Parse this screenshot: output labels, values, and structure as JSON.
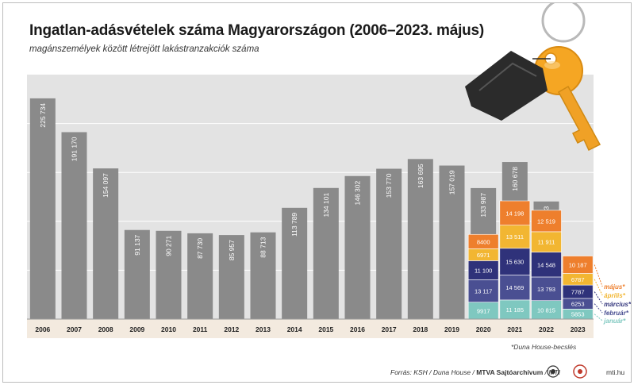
{
  "header": {
    "title": "Ingatlan-adásvételek száma Magyarországon (2006–2023. május)",
    "subtitle": "magánszemélyek között létrejött lakástranzakciók száma"
  },
  "footer": {
    "footnote": "*Duna House-becslés",
    "source": "Forrás: KSH / Duna House / ",
    "source_bold": "MTVA Sajtóarchívum",
    "source_tail": " / MTI",
    "site": "mti.hu"
  },
  "colors": {
    "bar": "#8a8a8a",
    "gridline": "#ffffff",
    "axis_band": "#f3eadf",
    "january": "#7fc8c0",
    "february": "#4a4f92",
    "march": "#2f327a",
    "april": "#f2b632",
    "may": "#ee7f2d",
    "key_gold": "#f5a623",
    "tag_dark": "#2b2b2b"
  },
  "icons": [
    "key-icon",
    "keytag-icon",
    "mti-logo-icon",
    "mtva-logo-icon"
  ],
  "chart_data": {
    "type": "bar",
    "title": "Ingatlan-adásvételek száma Magyarországon (2006–2023. május)",
    "subtitle": "magánszemélyek között létrejött lakástranzakciók száma",
    "xlabel": "",
    "ylabel": "",
    "ylim": [
      0,
      250000
    ],
    "grid": true,
    "categories": [
      "2006",
      "2007",
      "2008",
      "2009",
      "2010",
      "2011",
      "2012",
      "2013",
      "2014",
      "2015",
      "2016",
      "2017",
      "2018",
      "2019",
      "2020",
      "2021",
      "2022",
      "2023"
    ],
    "annual": {
      "values": [
        225734,
        191170,
        154097,
        91137,
        90271,
        87730,
        85957,
        88713,
        113789,
        134101,
        146302,
        153770,
        163695,
        157019,
        133987,
        160678,
        120293,
        null
      ],
      "labels": [
        "225 734",
        "191 170",
        "154 097",
        "91 137",
        "90 271",
        "87 730",
        "85 957",
        "88 713",
        "113 789",
        "134 101",
        "146 302",
        "153 770",
        "163 695",
        "157 019",
        "133 987",
        "160 678",
        "120 293",
        ""
      ]
    },
    "monthly": {
      "years": [
        "2020",
        "2021",
        "2022",
        "2023"
      ],
      "series": [
        {
          "name": "január",
          "key": "january",
          "values": [
            9917,
            11185,
            10815,
            5853
          ],
          "labels": [
            "9917",
            "11 185",
            "10 815",
            "5853"
          ]
        },
        {
          "name": "február",
          "key": "february",
          "values": [
            13117,
            14569,
            13793,
            6253
          ],
          "labels": [
            "13 117",
            "14 569",
            "13 793",
            "6253"
          ]
        },
        {
          "name": "március",
          "key": "march",
          "values": [
            11100,
            15630,
            14548,
            7787
          ],
          "labels": [
            "11 100",
            "15 630",
            "14 548",
            "7787"
          ]
        },
        {
          "name": "április",
          "key": "april",
          "values": [
            6971,
            13511,
            11911,
            6787
          ],
          "labels": [
            "6971",
            "13 511",
            "11 911",
            "6787"
          ]
        },
        {
          "name": "május",
          "key": "may",
          "values": [
            8400,
            14198,
            12519,
            10187
          ],
          "labels": [
            "8400",
            "14 198",
            "12 519",
            "10 187"
          ]
        }
      ],
      "legend": {
        "position": "right",
        "labels": [
          "május*",
          "április*",
          "március*",
          "február*",
          "január*"
        ]
      }
    }
  }
}
